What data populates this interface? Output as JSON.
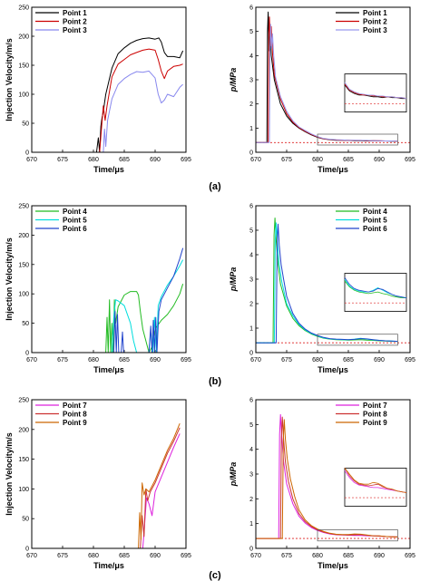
{
  "panels": [
    {
      "label": "(a)"
    },
    {
      "label": "(b)"
    },
    {
      "label": "(c)"
    }
  ],
  "chart_data": [
    {
      "panel": "(a)",
      "side": "left",
      "type": "line",
      "xlabel": "Time/μs",
      "ylabel": "Injection Velocity/m/s",
      "xlim": [
        670,
        695
      ],
      "ylim": [
        0,
        250
      ],
      "xticks": [
        670,
        675,
        680,
        685,
        690,
        695
      ],
      "yticks": [
        0,
        50,
        100,
        150,
        200,
        250
      ],
      "legend": "top-left",
      "series": [
        {
          "name": "Point 1",
          "color": "#000000",
          "x": [
            670,
            680.5,
            680.8,
            681.0,
            681.2,
            681.4,
            681.6,
            681.8,
            682,
            683,
            684,
            685,
            686,
            687,
            688,
            689,
            690,
            690.6,
            691,
            691.5,
            692,
            693,
            694,
            694.5
          ],
          "y": [
            0,
            0,
            25,
            0,
            45,
            60,
            70,
            85,
            100,
            145,
            170,
            180,
            188,
            193,
            196,
            197,
            195,
            197,
            190,
            172,
            165,
            165,
            163,
            175
          ]
        },
        {
          "name": "Point 2",
          "color": "#cc0000",
          "x": [
            670,
            681.0,
            681.3,
            681.6,
            681.9,
            682.2,
            683,
            684,
            685,
            686,
            687,
            688,
            689,
            690,
            690.5,
            691,
            691.5,
            692,
            693,
            694,
            694.5
          ],
          "y": [
            0,
            0,
            40,
            80,
            55,
            80,
            130,
            152,
            160,
            168,
            172,
            176,
            178,
            176,
            160,
            140,
            127,
            140,
            148,
            150,
            152
          ]
        },
        {
          "name": "Point 3",
          "color": "#8888ee",
          "x": [
            670,
            681.6,
            681.8,
            682.0,
            682.3,
            683,
            684,
            685,
            686,
            687,
            688,
            689,
            690,
            690.5,
            691,
            691.5,
            692,
            693,
            694,
            694.5
          ],
          "y": [
            0,
            0,
            40,
            10,
            55,
            92,
            117,
            127,
            134,
            139,
            138,
            140,
            128,
            100,
            85,
            90,
            100,
            96,
            112,
            117
          ]
        }
      ]
    },
    {
      "panel": "(a)",
      "side": "right",
      "type": "line",
      "xlabel": "Time/μs",
      "ylabel": "p/MPa",
      "xlim": [
        670,
        695
      ],
      "ylim": [
        0,
        6
      ],
      "xticks": [
        670,
        675,
        680,
        685,
        690,
        695
      ],
      "yticks": [
        0,
        1,
        2,
        3,
        4,
        5,
        6
      ],
      "legend": "top-right",
      "reference_level": 0.4,
      "series": [
        {
          "name": "Point 1",
          "color": "#000000",
          "x": [
            670,
            671.8,
            671.9,
            672.0,
            672.15,
            672.3,
            672.5,
            673,
            674,
            675,
            676,
            677,
            678,
            679,
            680,
            681,
            682,
            683,
            684,
            685,
            686,
            687,
            688,
            689,
            690,
            691,
            692,
            693
          ],
          "y": [
            0.4,
            0.4,
            5.0,
            5.8,
            4.2,
            5.0,
            4.0,
            3.0,
            2.0,
            1.5,
            1.2,
            1.0,
            0.85,
            0.72,
            0.62,
            0.55,
            0.52,
            0.5,
            0.5,
            0.49,
            0.48,
            0.48,
            0.47,
            0.48,
            0.47,
            0.47,
            0.46,
            0.46
          ]
        },
        {
          "name": "Point 2",
          "color": "#cc0000",
          "x": [
            670,
            672.0,
            672.1,
            672.2,
            672.35,
            672.5,
            672.7,
            673,
            674,
            675,
            676,
            677,
            678,
            679,
            680,
            681,
            682,
            683,
            684,
            685,
            686,
            687,
            688,
            689,
            690,
            691,
            692,
            693
          ],
          "y": [
            0.4,
            0.4,
            4.8,
            5.6,
            4.4,
            5.2,
            4.1,
            3.2,
            2.2,
            1.6,
            1.25,
            1.02,
            0.87,
            0.74,
            0.63,
            0.56,
            0.53,
            0.51,
            0.5,
            0.5,
            0.49,
            0.49,
            0.48,
            0.48,
            0.48,
            0.47,
            0.47,
            0.46
          ]
        },
        {
          "name": "Point 3",
          "color": "#9999ee",
          "x": [
            670,
            672.2,
            672.3,
            672.4,
            672.55,
            672.7,
            672.9,
            673.2,
            674,
            675,
            676,
            677,
            678,
            679,
            680,
            681,
            682,
            683,
            684,
            685,
            686,
            687,
            688,
            689,
            690,
            691,
            692,
            693
          ],
          "y": [
            0.4,
            0.4,
            4.4,
            5.3,
            4.3,
            4.9,
            4.0,
            3.1,
            2.3,
            1.7,
            1.3,
            1.05,
            0.9,
            0.76,
            0.65,
            0.57,
            0.54,
            0.52,
            0.51,
            0.5,
            0.5,
            0.49,
            0.49,
            0.48,
            0.48,
            0.47,
            0.47,
            0.46
          ]
        }
      ]
    },
    {
      "panel": "(b)",
      "side": "left",
      "type": "line",
      "xlabel": "Time/μs",
      "ylabel": "Injection Velocity/m/s",
      "xlim": [
        670,
        695
      ],
      "ylim": [
        0,
        250
      ],
      "xticks": [
        670,
        675,
        680,
        685,
        690,
        695
      ],
      "yticks": [
        0,
        50,
        100,
        150,
        200,
        250
      ],
      "legend": "top-left",
      "series": [
        {
          "name": "Point 4",
          "color": "#22bb22",
          "x": [
            670,
            682.0,
            682.2,
            682.4,
            682.6,
            682.8,
            683.0,
            683.2,
            683.4,
            683.6,
            684,
            685,
            686,
            687,
            687.3,
            687.6,
            688,
            688.5,
            689,
            689.5,
            690,
            691,
            692,
            693,
            694,
            694.5
          ],
          "y": [
            0,
            0,
            60,
            0,
            90,
            0,
            50,
            0,
            90,
            50,
            78,
            98,
            104,
            104,
            98,
            70,
            40,
            20,
            0,
            10,
            40,
            55,
            65,
            80,
            100,
            117
          ]
        },
        {
          "name": "Point 5",
          "color": "#00dddd",
          "x": [
            670,
            683.0,
            683.3,
            683.6,
            684,
            685,
            686,
            686.5,
            687,
            687.5,
            688,
            688.5,
            689,
            689.3,
            689.6,
            689.9,
            690.2,
            690.5,
            691,
            692,
            693,
            694,
            694.5
          ],
          "y": [
            0,
            0,
            60,
            90,
            88,
            80,
            50,
            20,
            0,
            0,
            0,
            0,
            0,
            40,
            0,
            60,
            0,
            80,
            95,
            115,
            130,
            148,
            158
          ]
        },
        {
          "name": "Point 6",
          "color": "#2244cc",
          "x": [
            670,
            683.3,
            683.5,
            683.7,
            683.9,
            684.1,
            684.3,
            684.5,
            684.7,
            684.9,
            685.1,
            685.3,
            685.6,
            689,
            689.3,
            689.5,
            689.7,
            689.9,
            690.1,
            690.3,
            690.6,
            691,
            692,
            693,
            694,
            694.5
          ],
          "y": [
            0,
            0,
            70,
            0,
            65,
            0,
            0,
            0,
            35,
            0,
            0,
            0,
            0,
            0,
            45,
            0,
            55,
            0,
            60,
            0,
            70,
            90,
            110,
            130,
            160,
            178
          ]
        }
      ]
    },
    {
      "panel": "(b)",
      "side": "right",
      "type": "line",
      "xlabel": "Time/μs",
      "ylabel": "p/MPa",
      "xlim": [
        670,
        695
      ],
      "ylim": [
        0,
        6
      ],
      "xticks": [
        670,
        675,
        680,
        685,
        690,
        695
      ],
      "yticks": [
        0,
        1,
        2,
        3,
        4,
        5,
        6
      ],
      "legend": "top-right",
      "reference_level": 0.4,
      "series": [
        {
          "name": "Point 4",
          "color": "#22bb22",
          "x": [
            670,
            672.8,
            672.95,
            673.1,
            673.3,
            673.6,
            674,
            675,
            676,
            677,
            678,
            679,
            680,
            681,
            682,
            683,
            684,
            685,
            686,
            687,
            688,
            689,
            690,
            691,
            692,
            693
          ],
          "y": [
            0.4,
            0.4,
            4.8,
            5.5,
            4.6,
            3.6,
            2.8,
            1.9,
            1.4,
            1.1,
            0.9,
            0.76,
            0.66,
            0.59,
            0.55,
            0.53,
            0.52,
            0.51,
            0.52,
            0.53,
            0.51,
            0.5,
            0.48,
            0.47,
            0.46,
            0.46
          ]
        },
        {
          "name": "Point 5",
          "color": "#00dddd",
          "x": [
            670,
            673.0,
            673.15,
            673.3,
            673.5,
            673.8,
            674.2,
            675,
            676,
            677,
            678,
            679,
            680,
            681,
            682,
            683,
            684,
            685,
            686,
            687,
            688,
            689,
            690,
            691,
            692,
            693
          ],
          "y": [
            0.4,
            0.4,
            4.6,
            5.3,
            4.5,
            3.6,
            2.9,
            2.0,
            1.5,
            1.15,
            0.93,
            0.78,
            0.68,
            0.6,
            0.56,
            0.54,
            0.53,
            0.53,
            0.55,
            0.58,
            0.55,
            0.52,
            0.5,
            0.48,
            0.47,
            0.46
          ]
        },
        {
          "name": "Point 6",
          "color": "#2244cc",
          "x": [
            670,
            673.3,
            673.45,
            673.6,
            673.8,
            674.1,
            674.5,
            675,
            676,
            677,
            678,
            679,
            680,
            681,
            682,
            683,
            684,
            685,
            686,
            687,
            688,
            689,
            690,
            691,
            692,
            693
          ],
          "y": [
            0.4,
            0.4,
            4.5,
            5.25,
            4.4,
            3.6,
            3.0,
            2.3,
            1.6,
            1.2,
            0.96,
            0.8,
            0.7,
            0.62,
            0.57,
            0.55,
            0.54,
            0.53,
            0.54,
            0.57,
            0.56,
            0.53,
            0.5,
            0.48,
            0.47,
            0.46
          ]
        }
      ]
    },
    {
      "panel": "(c)",
      "side": "left",
      "type": "line",
      "xlabel": "Time/μs",
      "ylabel": "Injection Velocity/m/s",
      "xlim": [
        670,
        695
      ],
      "ylim": [
        0,
        250
      ],
      "xticks": [
        670,
        675,
        680,
        685,
        690,
        695
      ],
      "yticks": [
        0,
        50,
        100,
        150,
        200,
        250
      ],
      "legend": "top-left",
      "series": [
        {
          "name": "Point 7",
          "color": "#dd22dd",
          "x": [
            670,
            688.0,
            688.3,
            688.6,
            689,
            689.5,
            690,
            691,
            692,
            693,
            694
          ],
          "y": [
            0,
            0,
            40,
            85,
            75,
            55,
            95,
            120,
            145,
            170,
            193
          ]
        },
        {
          "name": "Point 8",
          "color": "#cc3333",
          "x": [
            670,
            687.6,
            687.9,
            688.2,
            688.5,
            688.8,
            689.2,
            690,
            691,
            692,
            693,
            694
          ],
          "y": [
            0,
            0,
            55,
            20,
            100,
            80,
            95,
            110,
            135,
            160,
            180,
            203
          ]
        },
        {
          "name": "Point 9",
          "color": "#cc6600",
          "x": [
            670,
            687.3,
            687.5,
            687.7,
            687.9,
            688.2,
            688.5,
            689,
            690,
            691,
            692,
            693,
            694
          ],
          "y": [
            0,
            0,
            60,
            15,
            110,
            90,
            100,
            95,
            115,
            140,
            165,
            185,
            210
          ]
        }
      ]
    },
    {
      "panel": "(c)",
      "side": "right",
      "type": "line",
      "xlabel": "Time/μs",
      "ylabel": "p/MPa",
      "xlim": [
        670,
        695
      ],
      "ylim": [
        0,
        6
      ],
      "xticks": [
        670,
        675,
        680,
        685,
        690,
        695
      ],
      "yticks": [
        0,
        1,
        2,
        3,
        4,
        5,
        6
      ],
      "legend": "top-right",
      "reference_level": 0.4,
      "series": [
        {
          "name": "Point 7",
          "color": "#dd22dd",
          "x": [
            670,
            673.7,
            673.85,
            674.0,
            674.2,
            674.5,
            675,
            676,
            677,
            678,
            679,
            680,
            681,
            682,
            683,
            684,
            685,
            686,
            687,
            688,
            689,
            690,
            691,
            692,
            693
          ],
          "y": [
            0.4,
            0.4,
            4.6,
            5.4,
            4.5,
            3.5,
            2.6,
            1.8,
            1.3,
            1.02,
            0.84,
            0.72,
            0.64,
            0.58,
            0.55,
            0.54,
            0.53,
            0.52,
            0.52,
            0.51,
            0.5,
            0.49,
            0.48,
            0.47,
            0.46
          ]
        },
        {
          "name": "Point 8",
          "color": "#cc3333",
          "x": [
            670,
            674.0,
            674.15,
            674.3,
            674.5,
            674.8,
            675.3,
            676,
            677,
            678,
            679,
            680,
            681,
            682,
            683,
            684,
            685,
            686,
            687,
            688,
            689,
            690,
            691,
            692,
            693
          ],
          "y": [
            0.4,
            0.4,
            4.5,
            5.3,
            4.4,
            3.5,
            2.7,
            2.0,
            1.4,
            1.08,
            0.88,
            0.75,
            0.66,
            0.6,
            0.56,
            0.55,
            0.54,
            0.55,
            0.56,
            0.53,
            0.51,
            0.5,
            0.48,
            0.47,
            0.46
          ]
        },
        {
          "name": "Point 9",
          "color": "#cc6600",
          "x": [
            670,
            674.3,
            674.45,
            674.6,
            674.8,
            675.1,
            675.6,
            676.3,
            677,
            678,
            679,
            680,
            681,
            682,
            683,
            684,
            685,
            686,
            687,
            688,
            689,
            690,
            691,
            692,
            693
          ],
          "y": [
            0.4,
            0.4,
            4.4,
            5.2,
            4.4,
            3.6,
            2.8,
            2.1,
            1.55,
            1.15,
            0.92,
            0.78,
            0.68,
            0.61,
            0.57,
            0.56,
            0.56,
            0.58,
            0.57,
            0.54,
            0.51,
            0.5,
            0.48,
            0.47,
            0.46
          ]
        }
      ]
    }
  ]
}
